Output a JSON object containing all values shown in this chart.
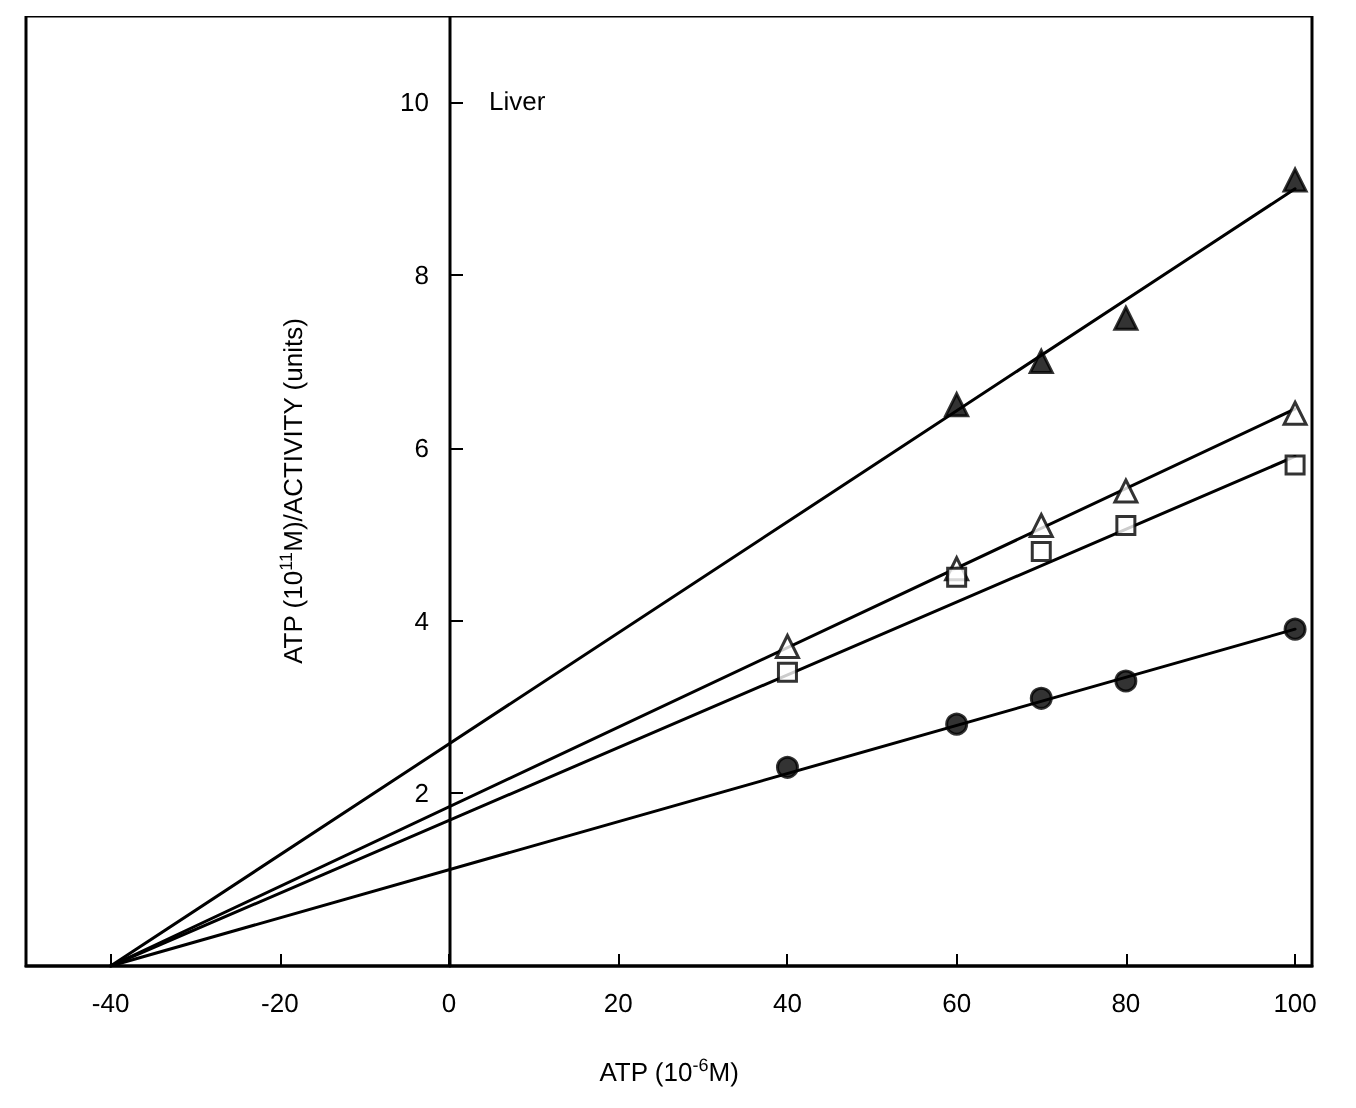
{
  "chart_data": {
    "type": "scatter",
    "xlabel": "ATP (10$^{-6}$M)",
    "ylabel": "ATP (10$^{11}$M)/ACTIVITY (units)",
    "annotations": [
      "Liver"
    ],
    "xlim": [
      -50,
      102
    ],
    "ylim": [
      0,
      11
    ],
    "xticks": [
      -40,
      -20,
      0,
      20,
      40,
      60,
      80,
      100
    ],
    "yticks": [
      2,
      4,
      6,
      8,
      10
    ],
    "series": [
      {
        "marker": "triangle",
        "color": "#000000",
        "x": [
          60,
          70,
          80,
          100
        ],
        "values": [
          6.5,
          7.0,
          7.5,
          9.1
        ]
      },
      {
        "marker": "triangle",
        "color": "#ffffff",
        "x": [
          40,
          60,
          70,
          80,
          100
        ],
        "values": [
          3.7,
          4.6,
          5.1,
          5.5,
          6.4
        ]
      },
      {
        "marker": "square",
        "color": "#ffffff",
        "x": [
          40,
          60,
          70,
          80,
          100
        ],
        "values": [
          3.4,
          4.5,
          4.8,
          5.1,
          5.8
        ]
      },
      {
        "marker": "circle",
        "color": "#000000",
        "x": [
          40,
          60,
          70,
          80,
          100
        ],
        "values": [
          2.3,
          2.8,
          3.1,
          3.3,
          3.9
        ]
      },
      {
        "type": "line",
        "marker": "none",
        "line_style": "solid",
        "color": "#000000",
        "x": [
          -40,
          100
        ],
        "values": [
          0,
          9.0
        ]
      },
      {
        "type": "line",
        "marker": "none",
        "line_style": "solid",
        "color": "#000000",
        "x": [
          -40,
          100
        ],
        "values": [
          0,
          6.45
        ]
      },
      {
        "type": "line",
        "marker": "none",
        "line_style": "solid",
        "color": "#000000",
        "x": [
          -40,
          100
        ],
        "values": [
          0,
          5.9
        ]
      },
      {
        "type": "line",
        "marker": "none",
        "line_style": "solid",
        "color": "#000000",
        "x": [
          -40,
          100
        ],
        "values": [
          0,
          3.9
        ]
      }
    ]
  }
}
